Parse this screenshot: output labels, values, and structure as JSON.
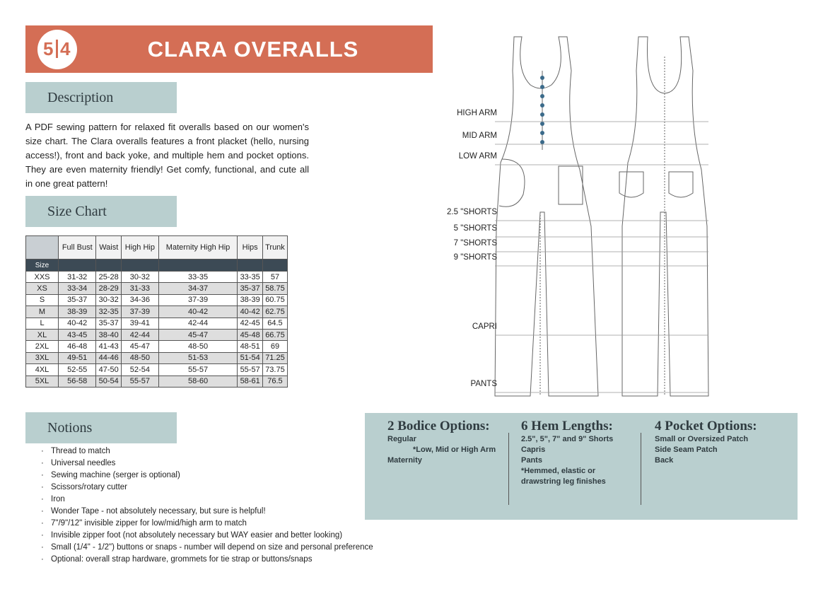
{
  "header": {
    "logo_left": "5",
    "logo_right": "4",
    "title": "CLARA OVERALLS"
  },
  "description": {
    "heading": "Description",
    "text": "A PDF sewing pattern for relaxed fit overalls based on our women's size chart. The Clara overalls features a front placket (hello, nursing access!), front and back yoke, and multiple hem and pocket options. They are even maternity friendly! Get comfy, functional, and cute all in one great pattern!"
  },
  "size_chart": {
    "heading": "Size Chart",
    "columns": [
      "Full Bust",
      "Waist",
      "High Hip",
      "Maternity High Hip",
      "Hips",
      "Trunk"
    ],
    "size_label": "Size",
    "rows": [
      [
        "XXS",
        "31-32",
        "25-28",
        "30-32",
        "33-35",
        "33-35",
        "57"
      ],
      [
        "XS",
        "33-34",
        "28-29",
        "31-33",
        "34-37",
        "35-37",
        "58.75"
      ],
      [
        "S",
        "35-37",
        "30-32",
        "34-36",
        "37-39",
        "38-39",
        "60.75"
      ],
      [
        "M",
        "38-39",
        "32-35",
        "37-39",
        "40-42",
        "40-42",
        "62.75"
      ],
      [
        "L",
        "40-42",
        "35-37",
        "39-41",
        "42-44",
        "42-45",
        "64.5"
      ],
      [
        "XL",
        "43-45",
        "38-40",
        "42-44",
        "45-47",
        "45-48",
        "66.75"
      ],
      [
        "2XL",
        "46-48",
        "41-43",
        "45-47",
        "48-50",
        "48-51",
        "69"
      ],
      [
        "3XL",
        "49-51",
        "44-46",
        "48-50",
        "51-53",
        "51-54",
        "71.25"
      ],
      [
        "4XL",
        "52-55",
        "47-50",
        "52-54",
        "55-57",
        "55-57",
        "73.75"
      ],
      [
        "5XL",
        "56-58",
        "50-54",
        "55-57",
        "58-60",
        "58-61",
        "76.5"
      ]
    ]
  },
  "notions": {
    "heading": "Notions",
    "items": [
      "Thread to match",
      "Universal needles",
      "Sewing machine (serger is optional)",
      "Scissors/rotary cutter",
      "Iron",
      "Wonder Tape - not absolutely necessary, but sure is helpful!",
      "7\"/9\"/12\" invisible zipper for low/mid/high arm to match",
      "Invisible zipper foot (not absolutely necessary but WAY easier and better looking)",
      "Small (1/4\" - 1/2\") buttons or snaps - number will depend on size and personal preference",
      "Optional: overall strap hardware, grommets for tie strap or buttons/snaps"
    ]
  },
  "diagram": {
    "labels": [
      "HIGH ARM",
      "MID ARM",
      "LOW ARM",
      "2.5 \"SHORTS",
      "5 \"SHORTS",
      "7 \"SHORTS",
      "9 \"SHORTS",
      "CAPRI",
      "PANTS"
    ]
  },
  "options": [
    {
      "heading": "2 Bodice Options:",
      "items": [
        "Regular",
        "*Low, Mid or High Arm",
        "Maternity"
      ]
    },
    {
      "heading": "6 Hem Lengths:",
      "items": [
        "2.5\", 5\", 7\" and 9\" Shorts",
        "Capris",
        "Pants",
        "*Hemmed, elastic or drawstring leg finishes"
      ]
    },
    {
      "heading": "4 Pocket Options:",
      "items": [
        "Small or Oversized Patch",
        "Side Seam Patch",
        "Back"
      ]
    }
  ]
}
